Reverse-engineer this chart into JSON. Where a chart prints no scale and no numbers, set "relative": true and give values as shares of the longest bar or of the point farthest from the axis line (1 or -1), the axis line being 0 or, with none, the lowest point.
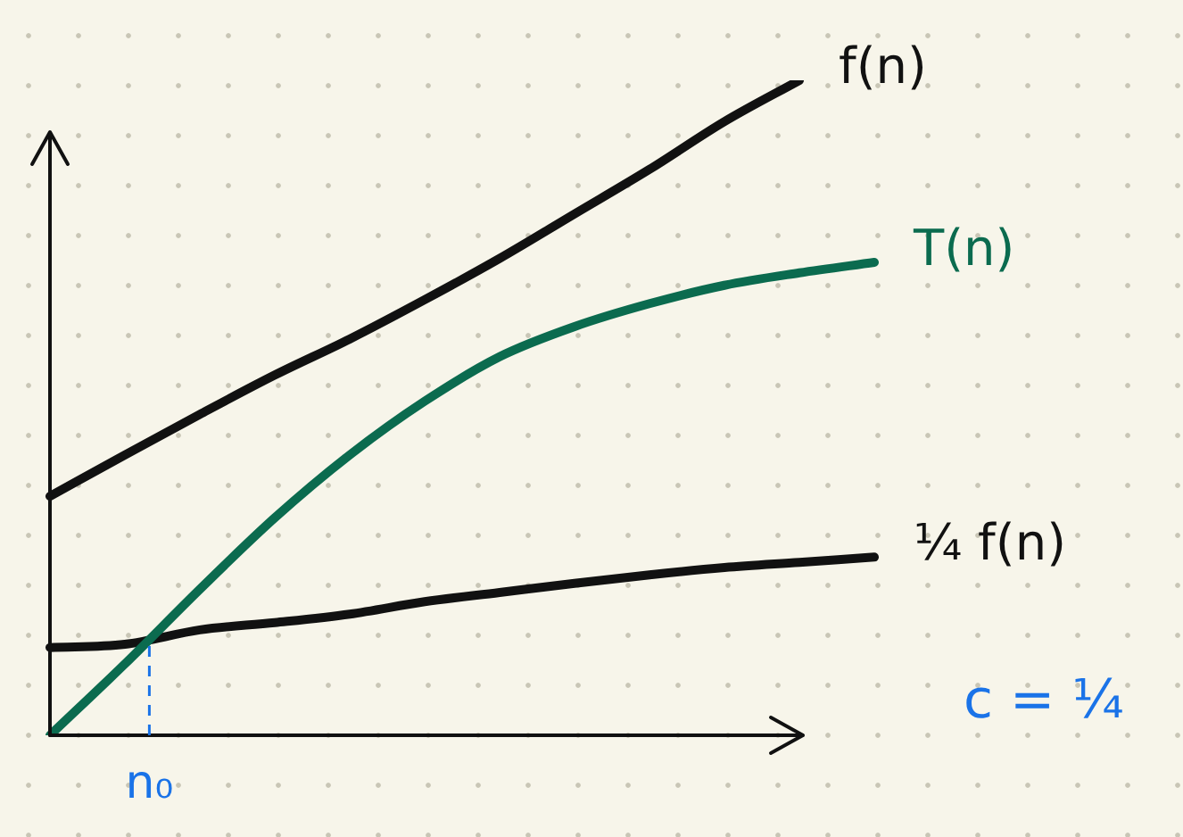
{
  "chart_data": {
    "type": "line",
    "relative": true,
    "categories": [
      null,
      null,
      null,
      null,
      null,
      null,
      null,
      null,
      null,
      null,
      null,
      null
    ],
    "series": [
      {
        "name": "f(n)",
        "color": "#111111",
        "values": [
          0.365,
          0.428,
          0.49,
          0.55,
          0.605,
          0.665,
          0.728,
          0.796,
          0.864,
          0.937,
          1,
          null
        ]
      },
      {
        "name": "T(n)",
        "color": "#0b6b4f",
        "values": [
          0,
          0.109,
          0.223,
          0.332,
          0.428,
          0.51,
          0.578,
          0.624,
          0.659,
          0.687,
          0.706,
          0.722
        ]
      },
      {
        "name": "¼ f(n)",
        "color": "#111111",
        "values": [
          0.134,
          0.139,
          0.161,
          0.172,
          0.185,
          0.204,
          0.218,
          0.232,
          0.245,
          0.256,
          0.264,
          0.272
        ]
      }
    ],
    "annotations": [
      "n₀",
      "c = ¼"
    ],
    "legend": false,
    "grid": false,
    "marker": "none",
    "line_style": "solid"
  }
}
